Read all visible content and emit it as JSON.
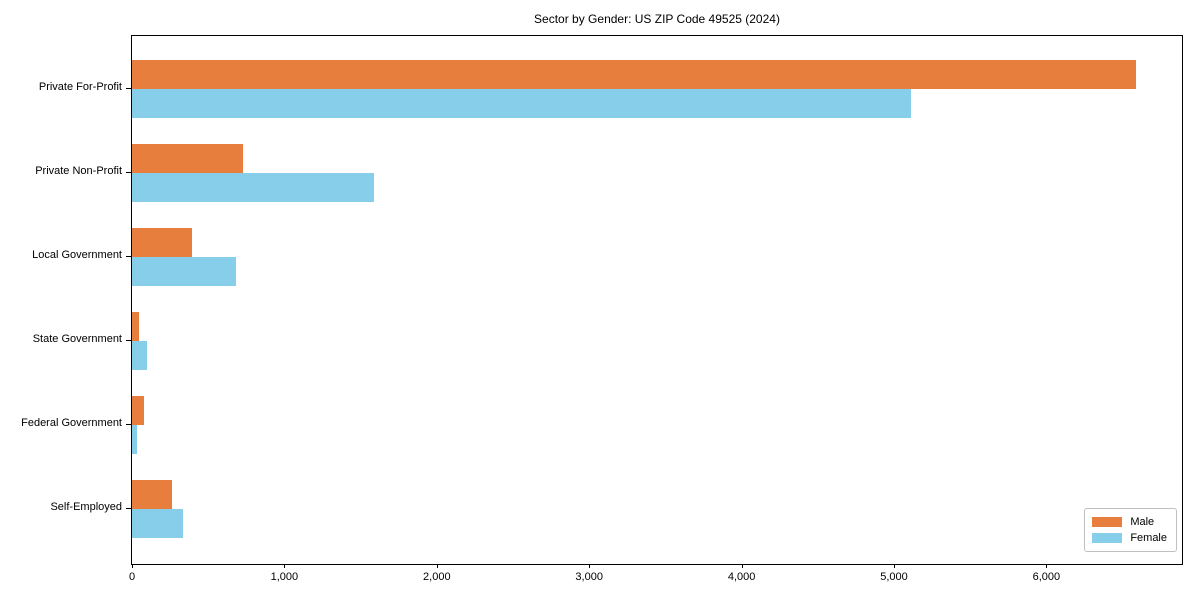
{
  "chart_data": {
    "type": "bar",
    "orientation": "horizontal",
    "title": "Sector by Gender: US ZIP Code 49525 (2024)",
    "categories": [
      "Private For-Profit",
      "Private Non-Profit",
      "Local Government",
      "State Government",
      "Federal Government",
      "Self-Employed"
    ],
    "series": [
      {
        "name": "Male",
        "color": "#e87e3e",
        "values": [
          6590,
          730,
          395,
          45,
          80,
          260
        ]
      },
      {
        "name": "Female",
        "color": "#87ceeb",
        "values": [
          5110,
          1585,
          680,
          100,
          30,
          335
        ]
      }
    ],
    "xlabel": "",
    "ylabel": "",
    "xlim": [
      0,
      6890
    ],
    "xticks": [
      0,
      1000,
      2000,
      3000,
      4000,
      5000,
      6000
    ],
    "xtick_labels": [
      "0",
      "1,000",
      "2,000",
      "3,000",
      "4,000",
      "5,000",
      "6,000"
    ],
    "legend": {
      "position": "lower right"
    },
    "grid": false,
    "background_color": "#ffffff",
    "spine_color": "#000000"
  }
}
